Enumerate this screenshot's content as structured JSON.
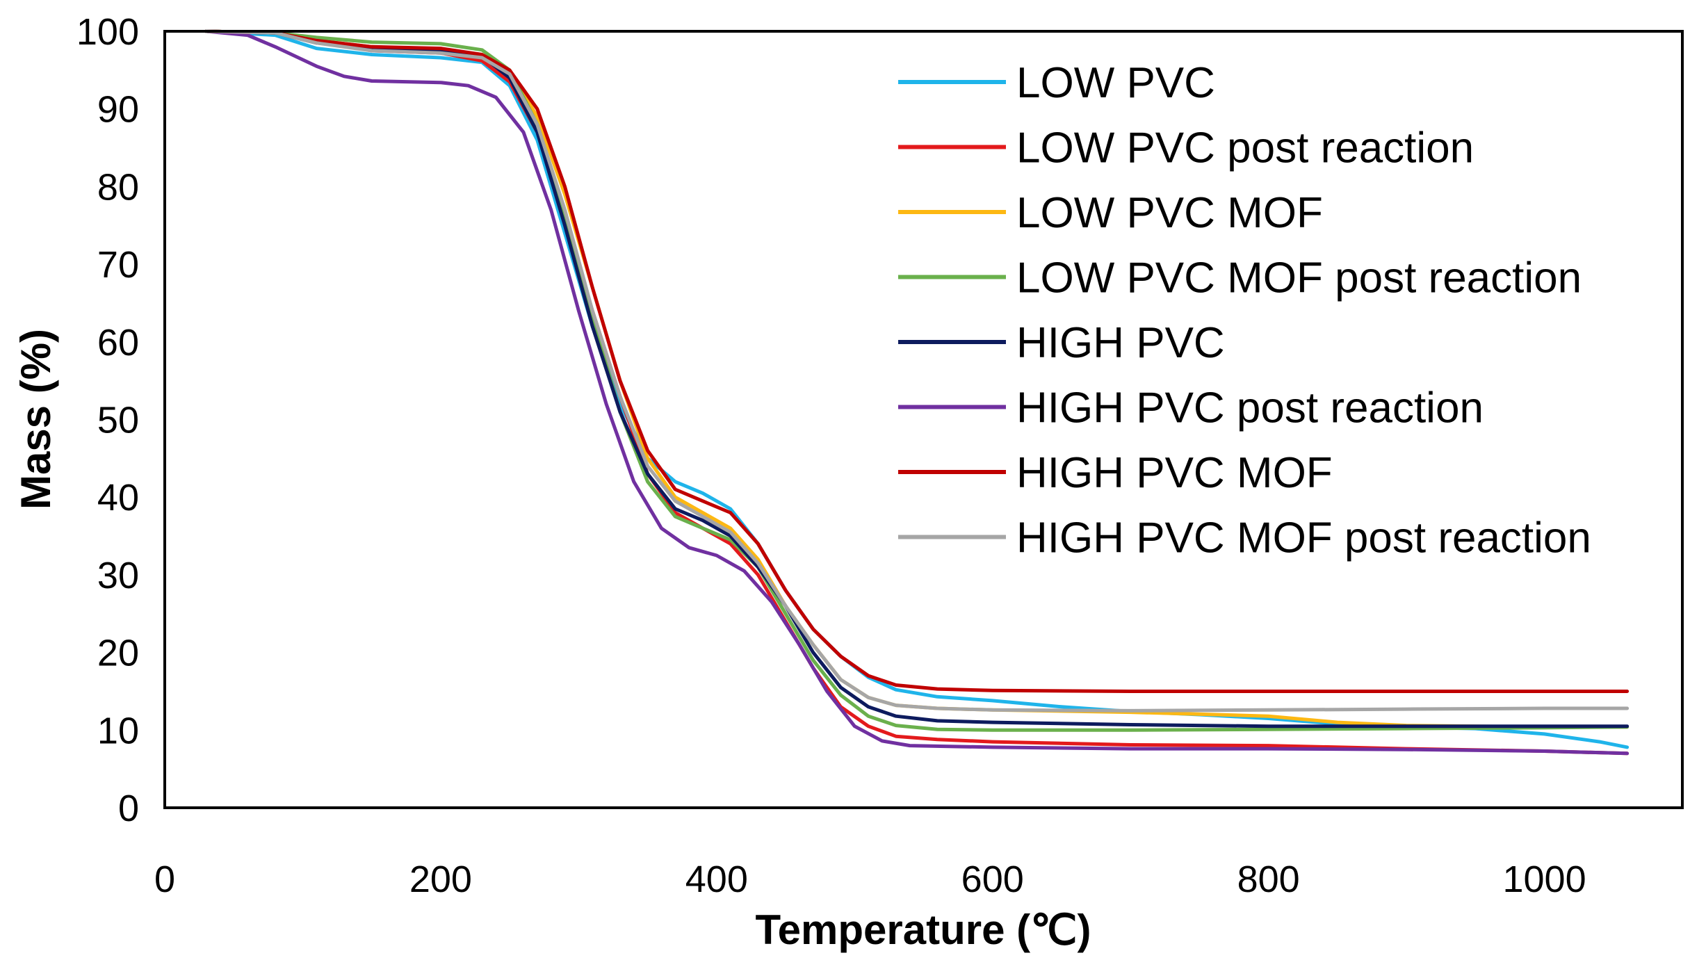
{
  "chart_data": {
    "type": "line",
    "title": "",
    "xlabel": "Temperature (℃)",
    "ylabel": "Mass (%)",
    "xlim": [
      0,
      1100
    ],
    "ylim": [
      0,
      100
    ],
    "x_ticks": [
      "0",
      "200",
      "400",
      "600",
      "800",
      "1000"
    ],
    "y_ticks": [
      "0",
      "10",
      "20",
      "30",
      "40",
      "50",
      "60",
      "70",
      "80",
      "90",
      "100"
    ],
    "grid": false,
    "legend_position": "top-right",
    "series": [
      {
        "name": "LOW PVC",
        "color": "#1fb4ea",
        "points": [
          [
            30,
            100
          ],
          [
            80,
            99.5
          ],
          [
            110,
            97.8
          ],
          [
            150,
            97.0
          ],
          [
            200,
            96.6
          ],
          [
            230,
            96.0
          ],
          [
            250,
            93
          ],
          [
            270,
            86
          ],
          [
            290,
            74
          ],
          [
            310,
            62
          ],
          [
            330,
            52
          ],
          [
            350,
            45
          ],
          [
            370,
            42.0
          ],
          [
            390,
            40.5
          ],
          [
            410,
            38.5
          ],
          [
            430,
            34
          ],
          [
            450,
            28
          ],
          [
            470,
            23
          ],
          [
            490,
            19.5
          ],
          [
            510,
            16.8
          ],
          [
            530,
            15.2
          ],
          [
            560,
            14.3
          ],
          [
            600,
            13.8
          ],
          [
            650,
            13.0
          ],
          [
            700,
            12.4
          ],
          [
            750,
            12.0
          ],
          [
            800,
            11.5
          ],
          [
            850,
            10.8
          ],
          [
            900,
            10.4
          ],
          [
            950,
            10.2
          ],
          [
            1000,
            9.5
          ],
          [
            1040,
            8.5
          ],
          [
            1060,
            7.8
          ]
        ]
      },
      {
        "name": "LOW PVC post reaction",
        "color": "#e31a1c",
        "points": [
          [
            30,
            100
          ],
          [
            80,
            99.8
          ],
          [
            110,
            98.8
          ],
          [
            150,
            97.5
          ],
          [
            200,
            97.2
          ],
          [
            230,
            96.2
          ],
          [
            250,
            93.5
          ],
          [
            270,
            87
          ],
          [
            290,
            76
          ],
          [
            310,
            64
          ],
          [
            330,
            53
          ],
          [
            350,
            43
          ],
          [
            370,
            38.0
          ],
          [
            390,
            36.0
          ],
          [
            410,
            34.0
          ],
          [
            430,
            30
          ],
          [
            450,
            24
          ],
          [
            470,
            18
          ],
          [
            490,
            13
          ],
          [
            510,
            10.5
          ],
          [
            530,
            9.2
          ],
          [
            560,
            8.8
          ],
          [
            600,
            8.5
          ],
          [
            700,
            8.1
          ],
          [
            800,
            8.0
          ],
          [
            900,
            7.6
          ],
          [
            1000,
            7.3
          ],
          [
            1060,
            7.0
          ]
        ]
      },
      {
        "name": "LOW PVC MOF",
        "color": "#fdb813",
        "points": [
          [
            30,
            100
          ],
          [
            80,
            99.8
          ],
          [
            110,
            98.8
          ],
          [
            150,
            98.0
          ],
          [
            200,
            97.6
          ],
          [
            230,
            97.0
          ],
          [
            250,
            95.0
          ],
          [
            270,
            89
          ],
          [
            290,
            79
          ],
          [
            310,
            67
          ],
          [
            330,
            55
          ],
          [
            350,
            45
          ],
          [
            370,
            40.0
          ],
          [
            390,
            38.0
          ],
          [
            410,
            36.0
          ],
          [
            430,
            32
          ],
          [
            450,
            26
          ],
          [
            470,
            21
          ],
          [
            490,
            16.5
          ],
          [
            510,
            14.2
          ],
          [
            530,
            13.2
          ],
          [
            560,
            12.8
          ],
          [
            600,
            12.6
          ],
          [
            700,
            12.3
          ],
          [
            800,
            11.8
          ],
          [
            850,
            11.0
          ],
          [
            900,
            10.6
          ],
          [
            1000,
            10.4
          ],
          [
            1060,
            10.4
          ]
        ]
      },
      {
        "name": "LOW PVC MOF post reaction",
        "color": "#6ab04c",
        "points": [
          [
            30,
            100
          ],
          [
            80,
            99.8
          ],
          [
            110,
            99.2
          ],
          [
            150,
            98.6
          ],
          [
            200,
            98.4
          ],
          [
            230,
            97.6
          ],
          [
            250,
            95.0
          ],
          [
            270,
            88
          ],
          [
            290,
            76
          ],
          [
            310,
            63
          ],
          [
            330,
            51
          ],
          [
            350,
            42
          ],
          [
            370,
            37.5
          ],
          [
            390,
            36.0
          ],
          [
            410,
            34.5
          ],
          [
            430,
            31
          ],
          [
            450,
            25
          ],
          [
            470,
            19
          ],
          [
            490,
            14.5
          ],
          [
            510,
            11.8
          ],
          [
            530,
            10.6
          ],
          [
            560,
            10.1
          ],
          [
            600,
            10.0
          ],
          [
            700,
            10.0
          ],
          [
            800,
            10.1
          ],
          [
            900,
            10.2
          ],
          [
            1000,
            10.3
          ],
          [
            1060,
            10.4
          ]
        ]
      },
      {
        "name": "HIGH PVC",
        "color": "#0d1b5e",
        "points": [
          [
            30,
            100
          ],
          [
            80,
            99.8
          ],
          [
            110,
            98.5
          ],
          [
            150,
            97.8
          ],
          [
            200,
            97.5
          ],
          [
            230,
            96.8
          ],
          [
            250,
            94.0
          ],
          [
            270,
            87
          ],
          [
            290,
            75
          ],
          [
            310,
            62
          ],
          [
            330,
            51
          ],
          [
            350,
            43
          ],
          [
            370,
            38.5
          ],
          [
            390,
            37.0
          ],
          [
            410,
            35.0
          ],
          [
            430,
            31
          ],
          [
            450,
            26
          ],
          [
            470,
            20
          ],
          [
            490,
            15.5
          ],
          [
            510,
            13.0
          ],
          [
            530,
            11.8
          ],
          [
            560,
            11.2
          ],
          [
            600,
            11.0
          ],
          [
            700,
            10.7
          ],
          [
            800,
            10.5
          ],
          [
            900,
            10.5
          ],
          [
            1000,
            10.5
          ],
          [
            1060,
            10.5
          ]
        ]
      },
      {
        "name": "HIGH PVC post reaction",
        "color": "#7030a0",
        "points": [
          [
            30,
            100
          ],
          [
            60,
            99.5
          ],
          [
            80,
            98.0
          ],
          [
            110,
            95.5
          ],
          [
            130,
            94.2
          ],
          [
            150,
            93.6
          ],
          [
            200,
            93.4
          ],
          [
            220,
            93.0
          ],
          [
            240,
            91.5
          ],
          [
            260,
            87
          ],
          [
            280,
            77
          ],
          [
            300,
            64
          ],
          [
            320,
            52
          ],
          [
            340,
            42
          ],
          [
            360,
            36
          ],
          [
            380,
            33.5
          ],
          [
            400,
            32.5
          ],
          [
            420,
            30.5
          ],
          [
            440,
            26.5
          ],
          [
            460,
            21
          ],
          [
            480,
            15
          ],
          [
            500,
            10.5
          ],
          [
            520,
            8.6
          ],
          [
            540,
            8.0
          ],
          [
            600,
            7.8
          ],
          [
            700,
            7.6
          ],
          [
            800,
            7.6
          ],
          [
            900,
            7.5
          ],
          [
            1000,
            7.3
          ],
          [
            1060,
            7.0
          ]
        ]
      },
      {
        "name": "HIGH PVC MOF",
        "color": "#c00000",
        "points": [
          [
            30,
            100
          ],
          [
            80,
            99.8
          ],
          [
            110,
            98.8
          ],
          [
            150,
            98.0
          ],
          [
            200,
            97.8
          ],
          [
            230,
            97.0
          ],
          [
            250,
            95.0
          ],
          [
            270,
            90
          ],
          [
            290,
            80
          ],
          [
            310,
            67
          ],
          [
            330,
            55
          ],
          [
            350,
            46
          ],
          [
            370,
            41.0
          ],
          [
            390,
            39.5
          ],
          [
            410,
            38.0
          ],
          [
            430,
            34
          ],
          [
            450,
            28
          ],
          [
            470,
            23
          ],
          [
            490,
            19.5
          ],
          [
            510,
            17.0
          ],
          [
            530,
            15.8
          ],
          [
            560,
            15.3
          ],
          [
            600,
            15.1
          ],
          [
            700,
            15.0
          ],
          [
            800,
            15.0
          ],
          [
            900,
            15.0
          ],
          [
            1000,
            15.0
          ],
          [
            1060,
            15.0
          ]
        ]
      },
      {
        "name": "HIGH PVC MOF post reaction",
        "color": "#a6a6a6",
        "points": [
          [
            30,
            100
          ],
          [
            80,
            99.8
          ],
          [
            110,
            98.5
          ],
          [
            150,
            97.5
          ],
          [
            200,
            97.2
          ],
          [
            230,
            96.6
          ],
          [
            250,
            94.5
          ],
          [
            270,
            88
          ],
          [
            290,
            77
          ],
          [
            310,
            64
          ],
          [
            330,
            53
          ],
          [
            350,
            44
          ],
          [
            370,
            39.5
          ],
          [
            390,
            37.5
          ],
          [
            410,
            35.5
          ],
          [
            430,
            31.5
          ],
          [
            450,
            26
          ],
          [
            470,
            21
          ],
          [
            490,
            16.5
          ],
          [
            510,
            14.2
          ],
          [
            530,
            13.2
          ],
          [
            560,
            12.8
          ],
          [
            600,
            12.6
          ],
          [
            700,
            12.5
          ],
          [
            800,
            12.6
          ],
          [
            900,
            12.7
          ],
          [
            1000,
            12.8
          ],
          [
            1060,
            12.8
          ]
        ]
      }
    ]
  }
}
